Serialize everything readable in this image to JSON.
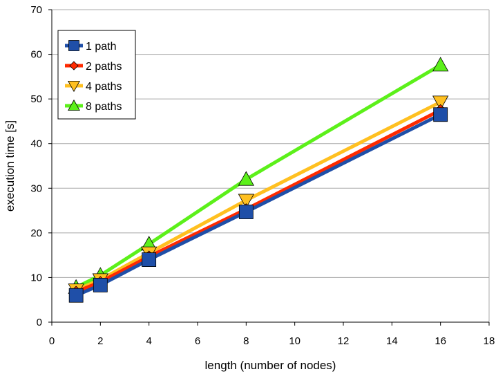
{
  "chart_data": {
    "type": "line",
    "title": "",
    "xlabel": "length (number of nodes)",
    "ylabel": "execution time [s]",
    "xlim": [
      0,
      18
    ],
    "ylim": [
      0,
      70
    ],
    "xticks": [
      0,
      2,
      4,
      6,
      8,
      10,
      12,
      14,
      16,
      18
    ],
    "yticks": [
      0,
      10,
      20,
      30,
      40,
      50,
      60,
      70
    ],
    "grid": "horizontal",
    "legend_position": "top-left",
    "x": [
      1,
      2,
      4,
      8,
      16
    ],
    "series": [
      {
        "name": "1 path",
        "values": [
          6.0,
          8.3,
          14.0,
          24.7,
          46.5
        ],
        "color": "#1f4fa8",
        "marker": "square"
      },
      {
        "name": "2 paths",
        "values": [
          6.8,
          9.0,
          14.7,
          25.3,
          47.5
        ],
        "color": "#ff2a00",
        "marker": "diamond"
      },
      {
        "name": "4 paths",
        "values": [
          7.2,
          9.5,
          15.5,
          27.3,
          49.3
        ],
        "color": "#ffc020",
        "marker": "triangle-down"
      },
      {
        "name": "8 paths",
        "values": [
          7.8,
          10.5,
          17.5,
          32.0,
          57.6
        ],
        "color": "#5cf01a",
        "marker": "triangle-up"
      }
    ]
  }
}
